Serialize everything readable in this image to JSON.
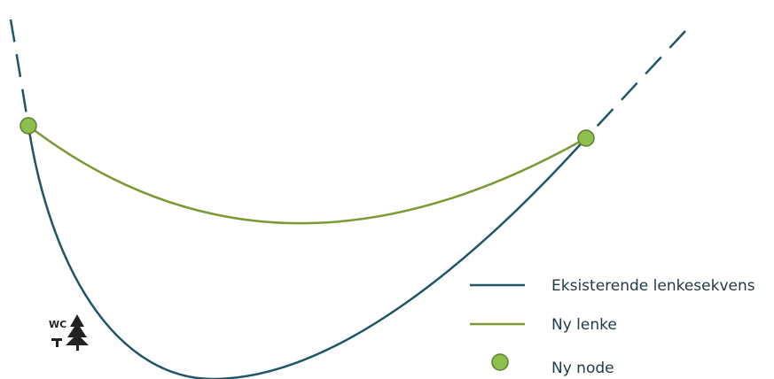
{
  "colors": {
    "existing_link": "#1f5668",
    "new_link": "#7a9a36",
    "node_fill": "#8dbf4f",
    "node_stroke": "#5e7f2c",
    "text": "#1e3a46",
    "icon": "#222222"
  },
  "icon": {
    "name": "rest-area-wc-tree-icon",
    "text": "WC"
  },
  "legend": {
    "existing": "Eksisterende lenkesekvens",
    "new_link": "Ny lenke",
    "new_node": "Ny node"
  }
}
